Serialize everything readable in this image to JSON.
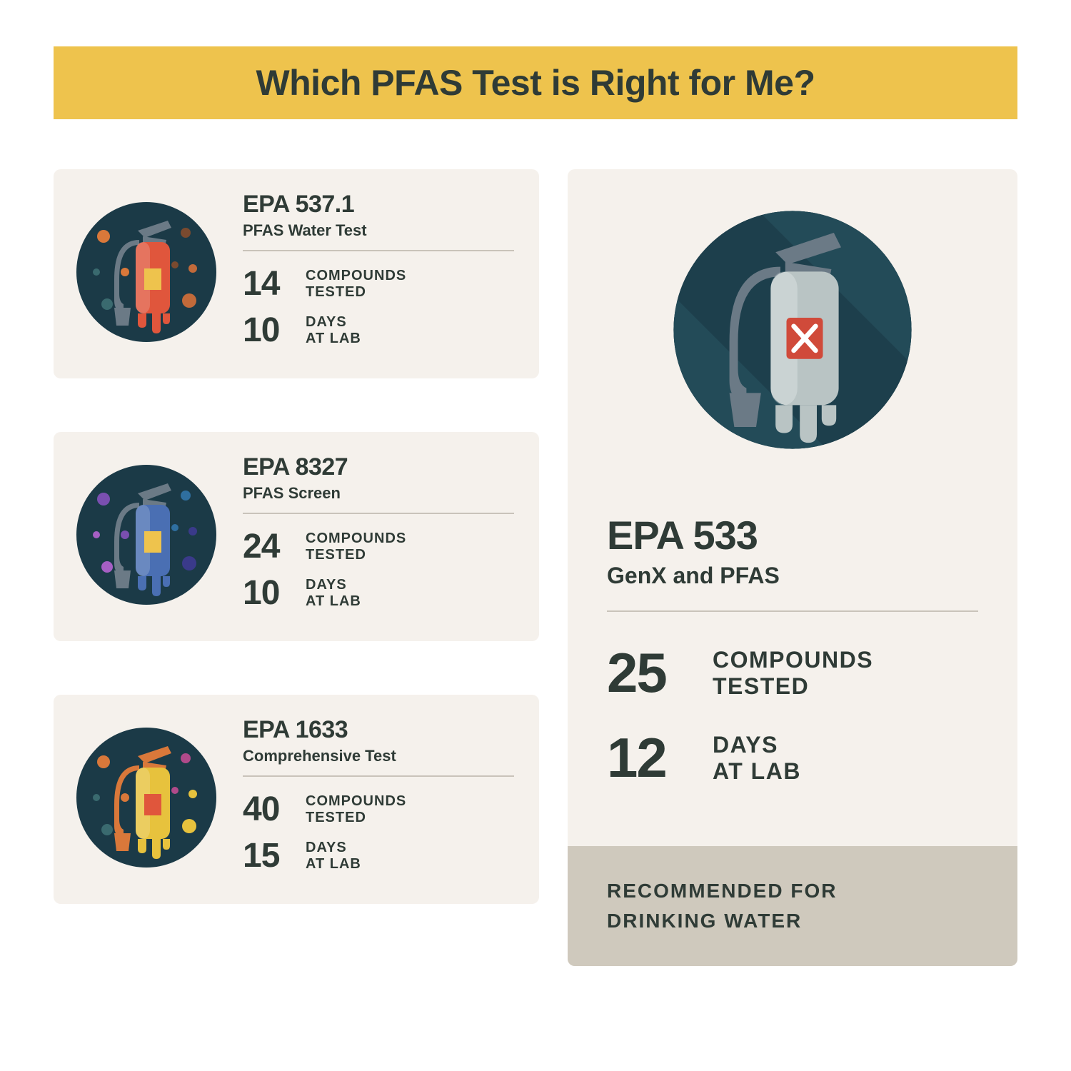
{
  "type": "infographic",
  "title": "Which PFAS Test is Right for Me?",
  "colors": {
    "title_bg": "#eec34d",
    "title_text": "#2f3b36",
    "card_bg": "#f5f1ec",
    "text": "#2f3b36",
    "divider": "#c9c3ba",
    "recommend_bg": "#cfc9bd",
    "badge_bg_dark": "#1b3a47",
    "badge_bg_teal": "#2a5a66"
  },
  "small_tests": [
    {
      "name": "EPA 537.1",
      "subtitle": "PFAS Water Test",
      "compounds": "14",
      "compounds_label": "COMPOUNDS\nTESTED",
      "days": "10",
      "days_label": "DAYS\nAT LAB",
      "icon": {
        "body": "#e0563c",
        "handle": "#6b7a86",
        "label": "#eec34d",
        "dots": [
          "#d9783a",
          "#7a4a2f",
          "#3a6a6f",
          "#c26a3a"
        ]
      }
    },
    {
      "name": "EPA 8327",
      "subtitle": "PFAS Screen",
      "compounds": "24",
      "compounds_label": "COMPOUNDS\nTESTED",
      "days": "10",
      "days_label": "DAYS\nAT LAB",
      "icon": {
        "body": "#4a6fb3",
        "handle": "#6b7a86",
        "label": "#eec34d",
        "dots": [
          "#7a4fb0",
          "#2f6fa0",
          "#a65fc4",
          "#3a3a8a"
        ]
      }
    },
    {
      "name": "EPA 1633",
      "subtitle": "Comprehensive Test",
      "compounds": "40",
      "compounds_label": "COMPOUNDS\nTESTED",
      "days": "15",
      "days_label": "DAYS\nAT LAB",
      "icon": {
        "body": "#e7c23d",
        "handle": "#d9783a",
        "label": "#e0563c",
        "dots": [
          "#d9783a",
          "#b04a8a",
          "#3a6a6f",
          "#e7c23d"
        ]
      }
    }
  ],
  "featured": {
    "name": "EPA 533",
    "subtitle": "GenX and PFAS",
    "compounds": "25",
    "compounds_label": "COMPOUNDS\nTESTED",
    "days": "12",
    "days_label": "DAYS\nAT LAB",
    "recommend": "RECOMMENDED FOR\nDRINKING WATER",
    "icon": {
      "body": "#b9c4c4",
      "handle": "#6b7a86",
      "label": "#d04a3a"
    }
  }
}
